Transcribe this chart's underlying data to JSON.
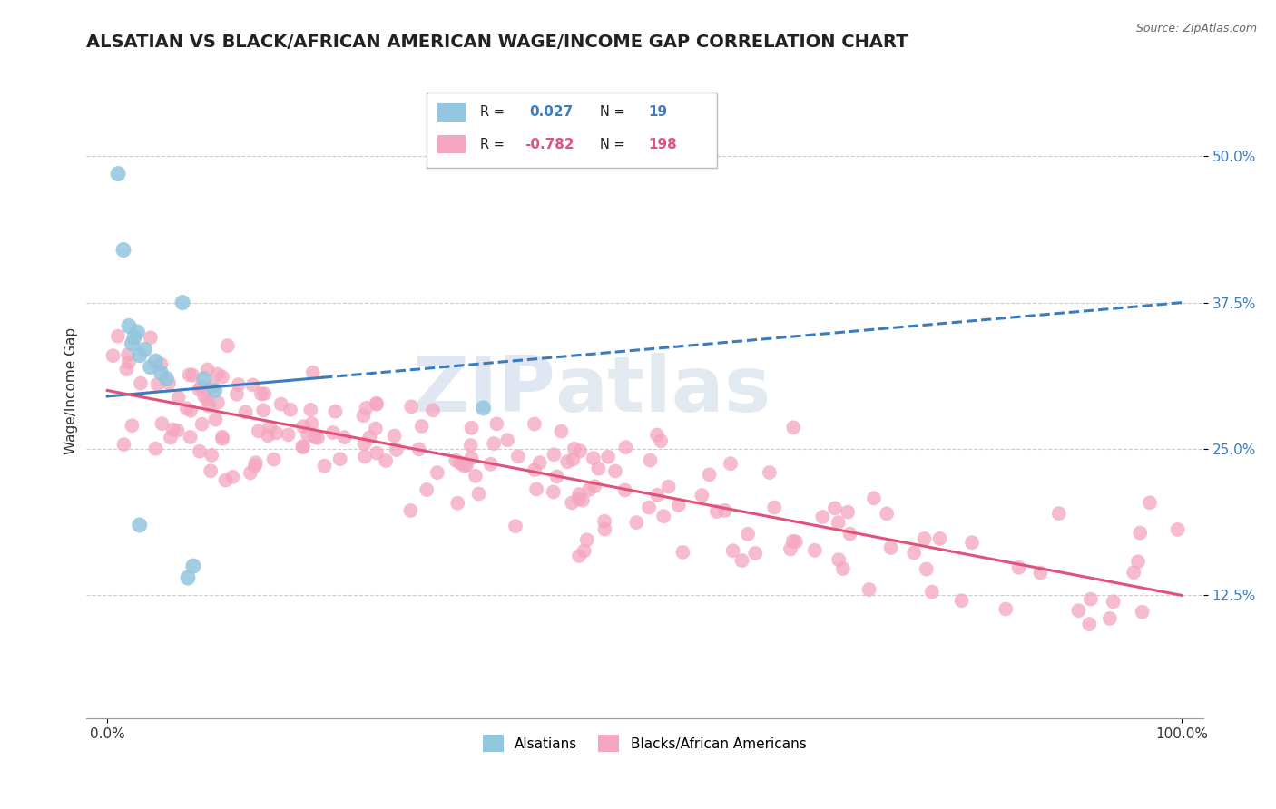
{
  "title": "ALSATIAN VS BLACK/AFRICAN AMERICAN WAGE/INCOME GAP CORRELATION CHART",
  "source": "Source: ZipAtlas.com",
  "ylabel": "Wage/Income Gap",
  "xlim": [
    -2,
    102
  ],
  "ylim": [
    2,
    58
  ],
  "yticks": [
    12.5,
    25.0,
    37.5,
    50.0
  ],
  "xticks": [
    0,
    100
  ],
  "xtick_labels": [
    "0.0%",
    "100.0%"
  ],
  "ytick_labels": [
    "12.5%",
    "25.0%",
    "37.5%",
    "50.0%"
  ],
  "blue_R": "0.027",
  "blue_N": "19",
  "pink_R": "-0.782",
  "pink_N": "198",
  "blue_color": "#92c5de",
  "pink_color": "#f4a6be",
  "blue_line_color": "#3b7bbf",
  "pink_line_color": "#e0527a",
  "ytick_color": "#3b7bbf",
  "legend_label_blue": "Alsatians",
  "legend_label_pink": "Blacks/African Americans",
  "background_color": "#ffffff",
  "grid_color": "#cccccc",
  "title_fontsize": 14,
  "axis_label_fontsize": 11,
  "tick_fontsize": 11,
  "blue_line_start_x": 0,
  "blue_line_end_x": 100,
  "blue_line_start_y": 29.5,
  "blue_line_end_y": 37.5,
  "blue_solid_end_x": 20,
  "pink_line_start_x": 0,
  "pink_line_end_x": 100,
  "pink_line_start_y": 30.0,
  "pink_line_end_y": 12.5
}
